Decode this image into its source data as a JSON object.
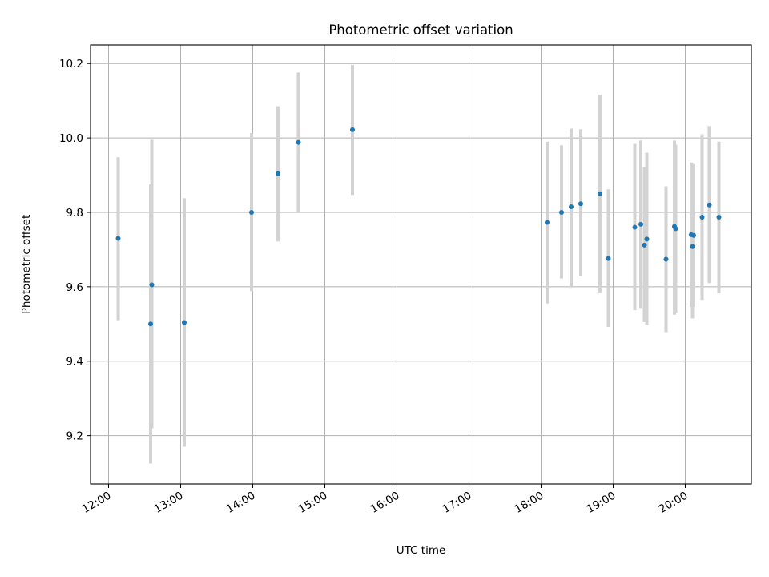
{
  "chart_data": {
    "type": "scatter",
    "title": "Photometric offset variation",
    "xlabel": "UTC time",
    "ylabel": "Photometric offset",
    "x_unit": "UTC hours",
    "xlim": [
      "11:45",
      "20:55"
    ],
    "ylim": [
      9.07,
      10.25
    ],
    "x_ticks": [
      "12:00",
      "13:00",
      "14:00",
      "15:00",
      "16:00",
      "17:00",
      "18:00",
      "19:00",
      "20:00"
    ],
    "y_ticks": [
      "9.2",
      "9.4",
      "9.6",
      "9.8",
      "10.0",
      "10.2"
    ],
    "grid": true,
    "legend": "none",
    "colors": {
      "point": "#1f77b4",
      "errorbar": "#d3d3d3",
      "grid": "#b0b0b0"
    },
    "points": [
      {
        "time": "12:08",
        "y": 9.73,
        "low": 9.51,
        "high": 9.948
      },
      {
        "time": "12:36",
        "y": 9.605,
        "low": 9.22,
        "high": 9.995
      },
      {
        "time": "12:35",
        "y": 9.5,
        "low": 9.125,
        "high": 9.875
      },
      {
        "time": "13:03",
        "y": 9.504,
        "low": 9.17,
        "high": 9.838
      },
      {
        "time": "13:59",
        "y": 9.8,
        "low": 9.588,
        "high": 10.013
      },
      {
        "time": "14:21",
        "y": 9.904,
        "low": 9.722,
        "high": 10.085
      },
      {
        "time": "14:38",
        "y": 9.988,
        "low": 9.8,
        "high": 10.176
      },
      {
        "time": "15:23",
        "y": 10.022,
        "low": 9.847,
        "high": 10.196
      },
      {
        "time": "18:05",
        "y": 9.773,
        "low": 9.555,
        "high": 9.99
      },
      {
        "time": "18:17",
        "y": 9.8,
        "low": 9.622,
        "high": 9.98
      },
      {
        "time": "18:25",
        "y": 9.815,
        "low": 9.6,
        "high": 10.025
      },
      {
        "time": "18:33",
        "y": 9.823,
        "low": 9.628,
        "high": 10.023
      },
      {
        "time": "18:49",
        "y": 9.85,
        "low": 9.585,
        "high": 10.116
      },
      {
        "time": "18:56",
        "y": 9.676,
        "low": 9.492,
        "high": 9.862
      },
      {
        "time": "19:18",
        "y": 9.76,
        "low": 9.537,
        "high": 9.984
      },
      {
        "time": "19:23",
        "y": 9.768,
        "low": 9.543,
        "high": 9.993
      },
      {
        "time": "19:26",
        "y": 9.712,
        "low": 9.505,
        "high": 9.922
      },
      {
        "time": "19:28",
        "y": 9.728,
        "low": 9.497,
        "high": 9.96
      },
      {
        "time": "19:44",
        "y": 9.674,
        "low": 9.478,
        "high": 9.87
      },
      {
        "time": "19:51",
        "y": 9.762,
        "low": 9.525,
        "high": 9.993
      },
      {
        "time": "19:52",
        "y": 9.756,
        "low": 9.53,
        "high": 9.982
      },
      {
        "time": "20:05",
        "y": 9.74,
        "low": 9.545,
        "high": 9.934
      },
      {
        "time": "20:06",
        "y": 9.708,
        "low": 9.515,
        "high": 9.9
      },
      {
        "time": "20:07",
        "y": 9.738,
        "low": 9.545,
        "high": 9.93
      },
      {
        "time": "20:14",
        "y": 9.787,
        "low": 9.565,
        "high": 10.01
      },
      {
        "time": "20:20",
        "y": 9.82,
        "low": 9.61,
        "high": 10.032
      },
      {
        "time": "20:28",
        "y": 9.787,
        "low": 9.583,
        "high": 9.99
      }
    ]
  }
}
